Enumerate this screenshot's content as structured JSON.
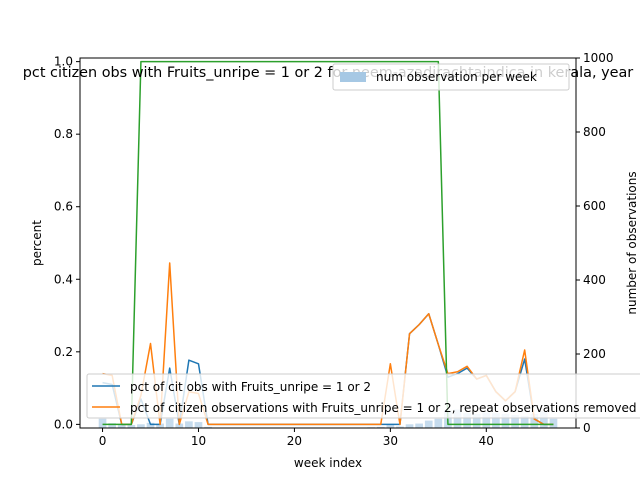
{
  "chart_data": {
    "type": "line",
    "title": "pct citizen obs with Fruits_unripe = 1 or 2 for neem-azadirachtaindica in kerala, year",
    "xlabel": "week index",
    "ylabel": "percent",
    "y2label": "number of observations",
    "xlim": [
      -2.35,
      49.35
    ],
    "ylim": [
      -0.01,
      1.01
    ],
    "y2lim": [
      0,
      1000
    ],
    "xticks": [
      0,
      10,
      20,
      30,
      40
    ],
    "yticks": [
      0.0,
      0.2,
      0.4,
      0.6,
      0.8,
      1.0
    ],
    "y2ticks": [
      0,
      200,
      400,
      600,
      800,
      1000
    ],
    "bars": {
      "name": "num observation per week",
      "color": "#a6c8e4",
      "x": [
        0,
        1,
        2,
        3,
        4,
        5,
        6,
        7,
        8,
        9,
        10,
        11,
        12,
        13,
        14,
        15,
        16,
        17,
        18,
        19,
        20,
        21,
        22,
        23,
        24,
        25,
        26,
        27,
        28,
        29,
        30,
        31,
        32,
        33,
        34,
        35,
        36,
        37,
        38,
        39,
        40,
        41,
        42,
        43,
        44,
        45,
        46,
        47
      ],
      "values": [
        25,
        13,
        10,
        8,
        10,
        14,
        12,
        25,
        12,
        18,
        16,
        3,
        0,
        0,
        0,
        0,
        0,
        0,
        0,
        0,
        0,
        0,
        0,
        0,
        0,
        0,
        0,
        0,
        2,
        3,
        8,
        4,
        10,
        12,
        20,
        25,
        48,
        50,
        40,
        38,
        42,
        40,
        38,
        35,
        32,
        38,
        45,
        25
      ]
    },
    "series": [
      {
        "name": "pct of cit obs with Fruits_unripe = 1 or 2",
        "color": "#1f77b4",
        "x": [
          0,
          1,
          2,
          3,
          4,
          5,
          6,
          7,
          8,
          9,
          10,
          11,
          12,
          13,
          14,
          15,
          16,
          17,
          18,
          19,
          20,
          21,
          22,
          23,
          24,
          25,
          26,
          27,
          28,
          29,
          30,
          31,
          32,
          33,
          34,
          35,
          36,
          37,
          38,
          39,
          40,
          41,
          42,
          43,
          44,
          45,
          46,
          47
        ],
        "values": [
          0.115,
          0.11,
          0.0,
          0.0,
          0.07,
          0.0,
          0.0,
          0.155,
          0.0,
          0.177,
          0.167,
          0.0,
          0.0,
          0.0,
          0.0,
          0.0,
          0.0,
          0.0,
          0.0,
          0.0,
          0.0,
          0.0,
          0.0,
          0.0,
          0.0,
          0.0,
          0.0,
          0.0,
          0.0,
          0.0,
          0.0,
          0.0,
          0.25,
          0.275,
          0.305,
          0.22,
          0.13,
          0.14,
          0.155,
          0.125,
          0.135,
          0.09,
          0.065,
          0.09,
          0.18,
          0.015,
          0.0,
          0.0
        ]
      },
      {
        "name": "pct of citizen observations with Fruits_unripe = 1 or 2, repeat observations removed",
        "color": "#ff7f0e",
        "x": [
          0,
          1,
          2,
          3,
          4,
          5,
          6,
          7,
          8,
          9,
          10,
          11,
          12,
          13,
          14,
          15,
          16,
          17,
          18,
          19,
          20,
          21,
          22,
          23,
          24,
          25,
          26,
          27,
          28,
          29,
          30,
          31,
          32,
          33,
          34,
          35,
          36,
          37,
          38,
          39,
          40,
          41,
          42,
          43,
          44,
          45,
          46,
          47
        ],
        "values": [
          0.14,
          0.135,
          0.0,
          0.0,
          0.08,
          0.223,
          0.0,
          0.445,
          0.0,
          0.09,
          0.085,
          0.0,
          0.0,
          0.0,
          0.0,
          0.0,
          0.0,
          0.0,
          0.0,
          0.0,
          0.0,
          0.0,
          0.0,
          0.0,
          0.0,
          0.0,
          0.0,
          0.0,
          0.0,
          0.0,
          0.167,
          0.0,
          0.25,
          0.275,
          0.305,
          0.22,
          0.14,
          0.145,
          0.16,
          0.125,
          0.135,
          0.09,
          0.065,
          0.09,
          0.205,
          0.015,
          0.0,
          0.0
        ]
      },
      {
        "name": "",
        "color": "#2ca02c",
        "x": [
          0,
          1,
          2,
          3,
          4,
          5,
          6,
          7,
          8,
          9,
          10,
          11,
          12,
          13,
          14,
          15,
          16,
          17,
          18,
          19,
          20,
          21,
          22,
          23,
          24,
          25,
          26,
          27,
          28,
          29,
          30,
          31,
          32,
          33,
          34,
          35,
          36,
          37,
          38,
          39,
          40,
          41,
          42,
          43,
          44,
          45,
          46,
          47
        ],
        "values": [
          0.0,
          0.0,
          0.0,
          0.0,
          1.0,
          1.0,
          1.0,
          1.0,
          1.0,
          1.0,
          1.0,
          1.0,
          1.0,
          1.0,
          1.0,
          1.0,
          1.0,
          1.0,
          1.0,
          1.0,
          1.0,
          1.0,
          1.0,
          1.0,
          1.0,
          1.0,
          1.0,
          1.0,
          1.0,
          1.0,
          1.0,
          1.0,
          1.0,
          1.0,
          1.0,
          1.0,
          0.0,
          0.0,
          0.0,
          0.0,
          0.0,
          0.0,
          0.0,
          0.0,
          0.0,
          0.0,
          0.0,
          0.0
        ]
      }
    ],
    "legend_bars_placement": "upper right",
    "legend_lines_placement": "lower left",
    "grid": false
  }
}
